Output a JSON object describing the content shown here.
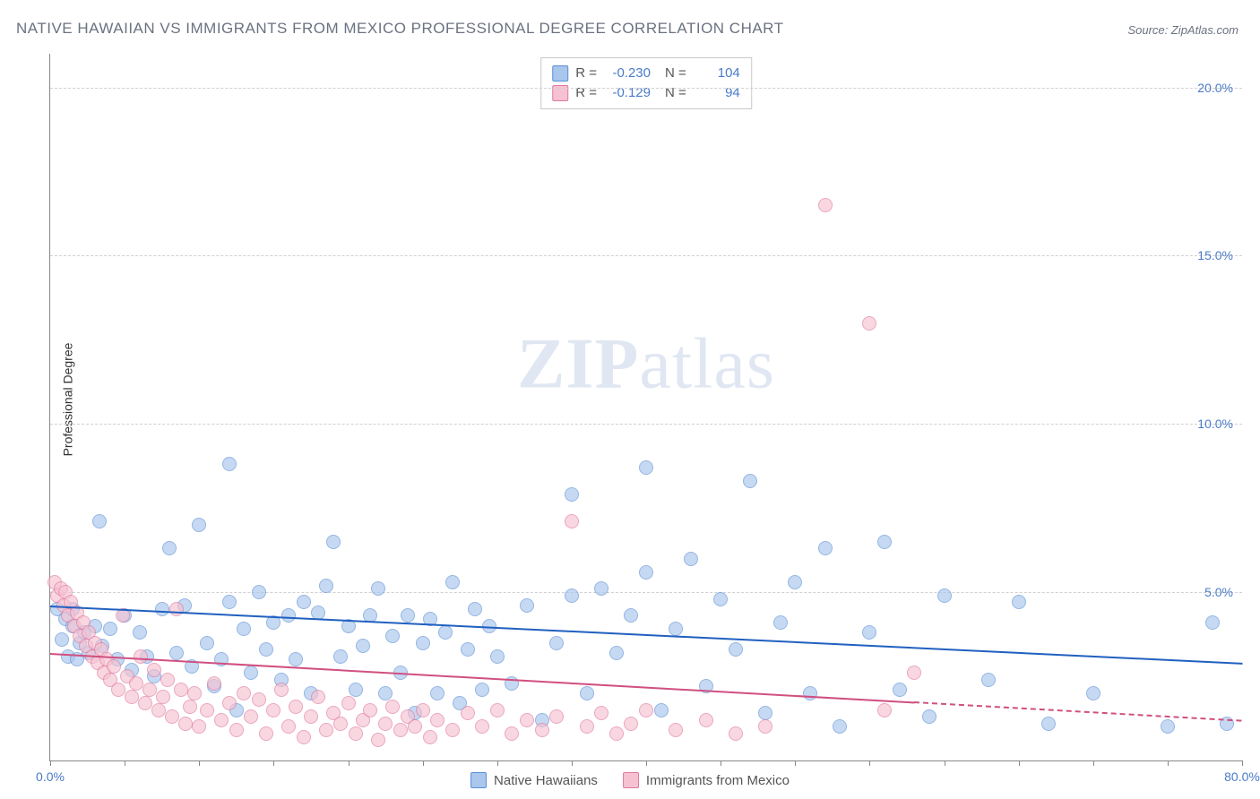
{
  "title": "NATIVE HAWAIIAN VS IMMIGRANTS FROM MEXICO PROFESSIONAL DEGREE CORRELATION CHART",
  "source": "Source: ZipAtlas.com",
  "ylabel": "Professional Degree",
  "watermark_a": "ZIP",
  "watermark_b": "atlas",
  "chart": {
    "type": "scatter",
    "xlim": [
      0,
      80
    ],
    "ylim": [
      0,
      21
    ],
    "xtick_step": 5,
    "xtick_labels": [
      {
        "x": 0,
        "label": "0.0%"
      },
      {
        "x": 80,
        "label": "80.0%"
      }
    ],
    "ytick_labels": [
      {
        "y": 5,
        "label": "5.0%"
      },
      {
        "y": 10,
        "label": "10.0%"
      },
      {
        "y": 15,
        "label": "15.0%"
      },
      {
        "y": 20,
        "label": "20.0%"
      }
    ],
    "gridlines_y": [
      5,
      10,
      15,
      20
    ],
    "background_color": "#ffffff",
    "grid_color": "#d0d0d0",
    "axis_label_color": "#4a7bc8",
    "marker_radius": 8,
    "marker_opacity": 0.65,
    "series": [
      {
        "name": "Native Hawaiians",
        "fill_color": "#a9c6ec",
        "stroke_color": "#5b8fd6",
        "trend_color": "#2060c0",
        "trend": {
          "x1": 0,
          "y1": 4.6,
          "x2": 80,
          "y2": 2.9,
          "solid_until_x": 80
        },
        "points": [
          [
            0.5,
            4.5
          ],
          [
            0.8,
            3.6
          ],
          [
            1.0,
            4.2
          ],
          [
            1.2,
            3.1
          ],
          [
            1.5,
            4.0
          ],
          [
            1.5,
            4.5
          ],
          [
            1.8,
            3.0
          ],
          [
            2.0,
            3.5
          ],
          [
            2.3,
            3.8
          ],
          [
            2.6,
            3.2
          ],
          [
            3.0,
            4.0
          ],
          [
            3.3,
            7.1
          ],
          [
            3.5,
            3.4
          ],
          [
            4.0,
            3.9
          ],
          [
            4.5,
            3.0
          ],
          [
            5.0,
            4.3
          ],
          [
            5.5,
            2.7
          ],
          [
            6.0,
            3.8
          ],
          [
            6.5,
            3.1
          ],
          [
            7.0,
            2.5
          ],
          [
            7.5,
            4.5
          ],
          [
            8.0,
            6.3
          ],
          [
            8.5,
            3.2
          ],
          [
            9.0,
            4.6
          ],
          [
            9.5,
            2.8
          ],
          [
            10.0,
            7.0
          ],
          [
            10.5,
            3.5
          ],
          [
            11.0,
            2.2
          ],
          [
            11.5,
            3.0
          ],
          [
            12.0,
            4.7
          ],
          [
            12.0,
            8.8
          ],
          [
            12.5,
            1.5
          ],
          [
            13.0,
            3.9
          ],
          [
            13.5,
            2.6
          ],
          [
            14.0,
            5.0
          ],
          [
            14.5,
            3.3
          ],
          [
            15.0,
            4.1
          ],
          [
            15.5,
            2.4
          ],
          [
            16.0,
            4.3
          ],
          [
            16.5,
            3.0
          ],
          [
            17.0,
            4.7
          ],
          [
            17.5,
            2.0
          ],
          [
            18.0,
            4.4
          ],
          [
            18.5,
            5.2
          ],
          [
            19.0,
            6.5
          ],
          [
            19.5,
            3.1
          ],
          [
            20.0,
            4.0
          ],
          [
            20.5,
            2.1
          ],
          [
            21.0,
            3.4
          ],
          [
            21.5,
            4.3
          ],
          [
            22.0,
            5.1
          ],
          [
            22.5,
            2.0
          ],
          [
            23.0,
            3.7
          ],
          [
            23.5,
            2.6
          ],
          [
            24.0,
            4.3
          ],
          [
            24.5,
            1.4
          ],
          [
            25.0,
            3.5
          ],
          [
            25.5,
            4.2
          ],
          [
            26.0,
            2.0
          ],
          [
            26.5,
            3.8
          ],
          [
            27.0,
            5.3
          ],
          [
            27.5,
            1.7
          ],
          [
            28.0,
            3.3
          ],
          [
            28.5,
            4.5
          ],
          [
            29.0,
            2.1
          ],
          [
            29.5,
            4.0
          ],
          [
            30.0,
            3.1
          ],
          [
            31.0,
            2.3
          ],
          [
            32.0,
            4.6
          ],
          [
            33.0,
            1.2
          ],
          [
            34.0,
            3.5
          ],
          [
            35.0,
            4.9
          ],
          [
            35.0,
            7.9
          ],
          [
            36.0,
            2.0
          ],
          [
            37.0,
            5.1
          ],
          [
            38.0,
            3.2
          ],
          [
            39.0,
            4.3
          ],
          [
            40.0,
            5.6
          ],
          [
            40.0,
            8.7
          ],
          [
            41.0,
            1.5
          ],
          [
            42.0,
            3.9
          ],
          [
            43.0,
            6.0
          ],
          [
            44.0,
            2.2
          ],
          [
            45.0,
            4.8
          ],
          [
            46.0,
            3.3
          ],
          [
            47.0,
            8.3
          ],
          [
            48.0,
            1.4
          ],
          [
            49.0,
            4.1
          ],
          [
            50.0,
            5.3
          ],
          [
            51.0,
            2.0
          ],
          [
            52.0,
            6.3
          ],
          [
            53.0,
            1.0
          ],
          [
            55.0,
            3.8
          ],
          [
            56.0,
            6.5
          ],
          [
            57.0,
            2.1
          ],
          [
            59.0,
            1.3
          ],
          [
            60.0,
            4.9
          ],
          [
            63.0,
            2.4
          ],
          [
            65.0,
            4.7
          ],
          [
            67.0,
            1.1
          ],
          [
            70.0,
            2.0
          ],
          [
            75.0,
            1.0
          ],
          [
            78.0,
            4.1
          ],
          [
            79.0,
            1.1
          ]
        ]
      },
      {
        "name": "Immigrants from Mexico",
        "fill_color": "#f6c2d1",
        "stroke_color": "#e078a0",
        "trend_color": "#d05080",
        "trend": {
          "x1": 0,
          "y1": 3.2,
          "x2": 80,
          "y2": 1.2,
          "solid_until_x": 58
        },
        "points": [
          [
            0.3,
            5.3
          ],
          [
            0.5,
            4.9
          ],
          [
            0.7,
            5.1
          ],
          [
            0.9,
            4.6
          ],
          [
            1.0,
            5.0
          ],
          [
            1.2,
            4.3
          ],
          [
            1.4,
            4.7
          ],
          [
            1.6,
            4.0
          ],
          [
            1.8,
            4.4
          ],
          [
            2.0,
            3.7
          ],
          [
            2.2,
            4.1
          ],
          [
            2.4,
            3.4
          ],
          [
            2.6,
            3.8
          ],
          [
            2.8,
            3.1
          ],
          [
            3.0,
            3.5
          ],
          [
            3.2,
            2.9
          ],
          [
            3.4,
            3.3
          ],
          [
            3.6,
            2.6
          ],
          [
            3.8,
            3.0
          ],
          [
            4.0,
            2.4
          ],
          [
            4.3,
            2.8
          ],
          [
            4.6,
            2.1
          ],
          [
            4.9,
            4.3
          ],
          [
            5.2,
            2.5
          ],
          [
            5.5,
            1.9
          ],
          [
            5.8,
            2.3
          ],
          [
            6.1,
            3.1
          ],
          [
            6.4,
            1.7
          ],
          [
            6.7,
            2.1
          ],
          [
            7.0,
            2.7
          ],
          [
            7.3,
            1.5
          ],
          [
            7.6,
            1.9
          ],
          [
            7.9,
            2.4
          ],
          [
            8.2,
            1.3
          ],
          [
            8.5,
            4.5
          ],
          [
            8.8,
            2.1
          ],
          [
            9.1,
            1.1
          ],
          [
            9.4,
            1.6
          ],
          [
            9.7,
            2.0
          ],
          [
            10.0,
            1.0
          ],
          [
            10.5,
            1.5
          ],
          [
            11.0,
            2.3
          ],
          [
            11.5,
            1.2
          ],
          [
            12.0,
            1.7
          ],
          [
            12.5,
            0.9
          ],
          [
            13.0,
            2.0
          ],
          [
            13.5,
            1.3
          ],
          [
            14.0,
            1.8
          ],
          [
            14.5,
            0.8
          ],
          [
            15.0,
            1.5
          ],
          [
            15.5,
            2.1
          ],
          [
            16.0,
            1.0
          ],
          [
            16.5,
            1.6
          ],
          [
            17.0,
            0.7
          ],
          [
            17.5,
            1.3
          ],
          [
            18.0,
            1.9
          ],
          [
            18.5,
            0.9
          ],
          [
            19.0,
            1.4
          ],
          [
            19.5,
            1.1
          ],
          [
            20.0,
            1.7
          ],
          [
            20.5,
            0.8
          ],
          [
            21.0,
            1.2
          ],
          [
            21.5,
            1.5
          ],
          [
            22.0,
            0.6
          ],
          [
            22.5,
            1.1
          ],
          [
            23.0,
            1.6
          ],
          [
            23.5,
            0.9
          ],
          [
            24.0,
            1.3
          ],
          [
            24.5,
            1.0
          ],
          [
            25.0,
            1.5
          ],
          [
            25.5,
            0.7
          ],
          [
            26.0,
            1.2
          ],
          [
            27.0,
            0.9
          ],
          [
            28.0,
            1.4
          ],
          [
            29.0,
            1.0
          ],
          [
            30.0,
            1.5
          ],
          [
            31.0,
            0.8
          ],
          [
            32.0,
            1.2
          ],
          [
            33.0,
            0.9
          ],
          [
            34.0,
            1.3
          ],
          [
            35.0,
            7.1
          ],
          [
            36.0,
            1.0
          ],
          [
            37.0,
            1.4
          ],
          [
            38.0,
            0.8
          ],
          [
            39.0,
            1.1
          ],
          [
            40.0,
            1.5
          ],
          [
            42.0,
            0.9
          ],
          [
            44.0,
            1.2
          ],
          [
            46.0,
            0.8
          ],
          [
            48.0,
            1.0
          ],
          [
            52.0,
            16.5
          ],
          [
            55.0,
            13.0
          ],
          [
            56.0,
            1.5
          ],
          [
            58.0,
            2.6
          ]
        ]
      }
    ]
  },
  "stats": [
    {
      "swatch_fill": "#a9c6ec",
      "swatch_stroke": "#5b8fd6",
      "r_label": "R =",
      "r": "-0.230",
      "n_label": "N =",
      "n": "104"
    },
    {
      "swatch_fill": "#f6c2d1",
      "swatch_stroke": "#e078a0",
      "r_label": "R =",
      "r": "-0.129",
      "n_label": "N =",
      "n": "94"
    }
  ],
  "legend": [
    {
      "swatch_fill": "#a9c6ec",
      "swatch_stroke": "#5b8fd6",
      "label": "Native Hawaiians"
    },
    {
      "swatch_fill": "#f6c2d1",
      "swatch_stroke": "#e078a0",
      "label": "Immigrants from Mexico"
    }
  ]
}
